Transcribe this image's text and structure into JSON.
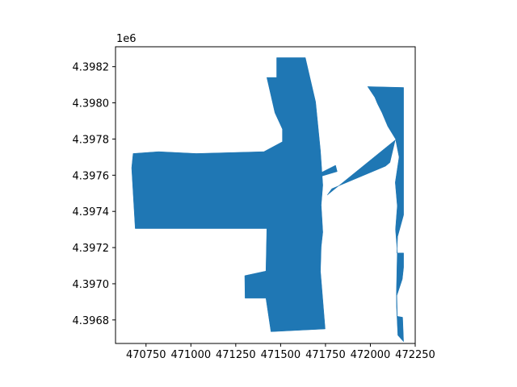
{
  "chart_data": {
    "type": "area",
    "title": "",
    "xlabel": "",
    "ylabel": "",
    "y_offset_label": "1e6",
    "grid": false,
    "legend": "none",
    "fill_color": "#1f77b4",
    "xlim": [
      470580,
      472250
    ],
    "ylim": [
      4396670,
      4398310
    ],
    "x_ticks": [
      470750,
      471000,
      471250,
      471500,
      471750,
      472000,
      472250
    ],
    "x_tick_labels": [
      "470750",
      "471000",
      "471250",
      "471500",
      "471750",
      "472000",
      "472250"
    ],
    "y_ticks": [
      4396800,
      4397000,
      4397200,
      4397400,
      4397600,
      4397800,
      4398000,
      4398200
    ],
    "y_tick_labels": [
      "4.3968",
      "4.3970",
      "4.3972",
      "4.3974",
      "4.3976",
      "4.3978",
      "4.3980",
      "4.3982"
    ],
    "polygons": [
      [
        [
          470678,
          4397720
        ],
        [
          470820,
          4397730
        ],
        [
          471030,
          4397720
        ],
        [
          471407,
          4397730
        ],
        [
          471510,
          4397785
        ],
        [
          471510,
          4397855
        ],
        [
          471468,
          4397945
        ],
        [
          471423,
          4398140
        ],
        [
          471478,
          4398140
        ],
        [
          471478,
          4398250
        ],
        [
          471638,
          4398250
        ],
        [
          471695,
          4398005
        ],
        [
          471722,
          4397735
        ],
        [
          471735,
          4397545
        ],
        [
          471726,
          4397435
        ],
        [
          471735,
          4397285
        ],
        [
          471726,
          4397205
        ],
        [
          471722,
          4397070
        ],
        [
          471748,
          4396750
        ],
        [
          471446,
          4396735
        ],
        [
          471418,
          4396920
        ],
        [
          471302,
          4396920
        ],
        [
          471300,
          4397045
        ],
        [
          471418,
          4397070
        ],
        [
          471423,
          4397305
        ],
        [
          470690,
          4397305
        ],
        [
          470670,
          4397640
        ]
      ],
      [
        [
          471726,
          4397615
        ],
        [
          471806,
          4397655
        ],
        [
          471815,
          4397620
        ],
        [
          471730,
          4397595
        ]
      ],
      [
        [
          471760,
          4397490
        ],
        [
          472139,
          4397795
        ],
        [
          472109,
          4397670
        ],
        [
          472085,
          4397650
        ],
        [
          471785,
          4397525
        ]
      ],
      [
        [
          471985,
          4398090
        ],
        [
          472185,
          4398085
        ],
        [
          472185,
          4397380
        ],
        [
          472152,
          4397260
        ],
        [
          472148,
          4397170
        ],
        [
          472185,
          4397170
        ],
        [
          472185,
          4397090
        ],
        [
          472178,
          4397025
        ],
        [
          472148,
          4396935
        ],
        [
          472150,
          4396820
        ],
        [
          472180,
          4396815
        ],
        [
          472185,
          4396680
        ],
        [
          472153,
          4396715
        ],
        [
          472146,
          4396870
        ],
        [
          472145,
          4396945
        ],
        [
          472150,
          4397180
        ],
        [
          472140,
          4397300
        ],
        [
          472150,
          4397430
        ],
        [
          472139,
          4397560
        ],
        [
          472160,
          4397700
        ],
        [
          472140,
          4397800
        ],
        [
          472097,
          4397870
        ],
        [
          472065,
          4397945
        ],
        [
          472040,
          4397995
        ],
        [
          472025,
          4398030
        ]
      ]
    ]
  }
}
